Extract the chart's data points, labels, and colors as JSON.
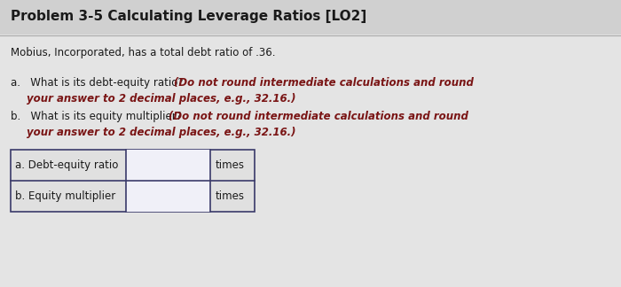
{
  "title": "Problem 3-5 Calculating Leverage Ratios [LO2]",
  "title_fontsize": 11,
  "intro_text": "Mobius, Incorporated, has a total debt ratio of .36.",
  "intro_fontsize": 8.5,
  "qa_normal": "a.   What is its debt-equity ratio? ",
  "qa_bold": "(Do not round intermediate calculations and round",
  "qa_bold2": "your answer to 2 decimal places, e.g., 32.16.)",
  "qb_normal": "b.   What is its equity multiplier? ",
  "qb_bold": "(Do not round intermediate calculations and round",
  "qb_bold2": "your answer to 2 decimal places, e.g., 32.16.)",
  "question_fontsize": 8.5,
  "table_row_a_label": "a. Debt-equity ratio",
  "table_row_b_label": "b. Equity multiplier",
  "table_unit": "times",
  "table_fontsize": 8.5,
  "bg_color": "#d8d8d8",
  "bg_content": "#e0e0e0",
  "text_dark": "#1a1a1a",
  "text_red": "#7a1515",
  "table_border": "#3a3a6a",
  "input_bg": "#f0f0f8"
}
